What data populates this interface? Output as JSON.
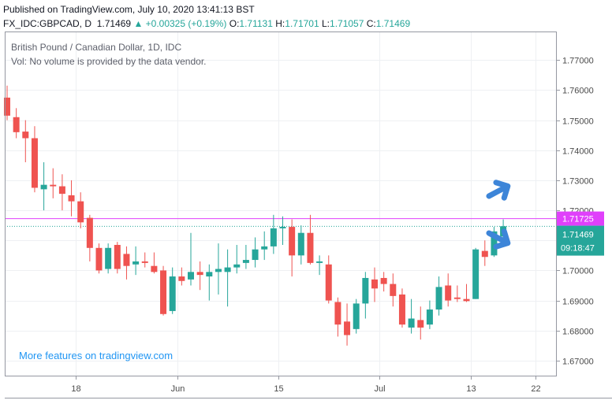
{
  "header": {
    "published": "Published on TradingView.com, July 10, 2020 13:41:13 BST",
    "symbol": "FX_IDC:GBPCAD, D",
    "last": "1.71469",
    "change": "▲ +0.00325 (+0.19%)",
    "open_label": "O:",
    "open": "1.71131",
    "high_label": "H:",
    "high": "1.71701",
    "low_label": "L:",
    "low": "1.71057",
    "close_label": "C:",
    "close": "1.71469"
  },
  "legend": {
    "title": "British Pound / Canadian Dollar, 1D, IDC",
    "volume_note": "Vol: No volume is provided by the data vendor."
  },
  "promo": "More features on tradingview.com",
  "colors": {
    "up": "#26a69a",
    "down": "#ef5350",
    "level_line": "#e040fb",
    "price_line": "#26a69a",
    "arrow": "#3d85d8",
    "grid": "#eef0f3"
  },
  "chart_data": {
    "type": "candlestick",
    "symbol": "GBPCAD",
    "ylim": [
      1.665,
      1.7795
    ],
    "y_ticks": [
      "1.67000",
      "1.68000",
      "1.69000",
      "1.70000",
      "1.71000",
      "1.72000",
      "1.73000",
      "1.74000",
      "1.75000",
      "1.76000",
      "1.77000"
    ],
    "x_ticks": [
      {
        "label": "18",
        "index": 7.5
      },
      {
        "label": "Jun",
        "index": 18.5
      },
      {
        "label": "15",
        "index": 29.5
      },
      {
        "label": "Jul",
        "index": 40.5
      },
      {
        "label": "13",
        "index": 50.5
      },
      {
        "label": "22",
        "index": 57.5
      }
    ],
    "horizontal_level": {
      "value": 1.71725,
      "label": "1.71725"
    },
    "price_line": {
      "value": 1.71469,
      "label": "1.71469",
      "countdown": "09:18:47"
    },
    "candles": [
      [
        1.7575,
        1.7615,
        1.75,
        1.7515
      ],
      [
        1.751,
        1.754,
        1.744,
        1.746
      ],
      [
        1.7462,
        1.75,
        1.736,
        1.744
      ],
      [
        1.744,
        1.748,
        1.726,
        1.7275
      ],
      [
        1.727,
        1.736,
        1.72,
        1.7285
      ],
      [
        1.7285,
        1.734,
        1.724,
        1.728
      ],
      [
        1.728,
        1.732,
        1.72,
        1.7255
      ],
      [
        1.725,
        1.73,
        1.718,
        1.723
      ],
      [
        1.723,
        1.726,
        1.714,
        1.716
      ],
      [
        1.7175,
        1.7185,
        1.703,
        1.7075
      ],
      [
        1.7075,
        1.709,
        1.699,
        1.7
      ],
      [
        1.7005,
        1.709,
        1.699,
        1.7075
      ],
      [
        1.7085,
        1.7095,
        1.699,
        1.7005
      ],
      [
        1.7055,
        1.708,
        1.697,
        1.7015
      ],
      [
        1.702,
        1.708,
        1.6985,
        1.703
      ],
      [
        1.703,
        1.706,
        1.701,
        1.7025
      ],
      [
        1.7015,
        1.706,
        1.699,
        1.6995
      ],
      [
        1.7,
        1.7015,
        1.685,
        1.6855
      ],
      [
        1.6865,
        1.701,
        1.6855,
        1.698
      ],
      [
        1.698,
        1.701,
        1.695,
        1.6965
      ],
      [
        1.697,
        1.7125,
        1.695,
        1.6995
      ],
      [
        1.6995,
        1.703,
        1.6935,
        1.6985
      ],
      [
        1.698,
        1.702,
        1.69,
        1.6995
      ],
      [
        1.6995,
        1.709,
        1.692,
        1.7005
      ],
      [
        1.6995,
        1.707,
        1.688,
        1.701
      ],
      [
        1.701,
        1.7085,
        1.699,
        1.702
      ],
      [
        1.7025,
        1.7085,
        1.7005,
        1.7035
      ],
      [
        1.7035,
        1.711,
        1.701,
        1.707
      ],
      [
        1.707,
        1.713,
        1.7035,
        1.708
      ],
      [
        1.708,
        1.7185,
        1.7055,
        1.714
      ],
      [
        1.714,
        1.718,
        1.7085,
        1.7145
      ],
      [
        1.7145,
        1.717,
        1.698,
        1.705
      ],
      [
        1.705,
        1.715,
        1.702,
        1.7125
      ],
      [
        1.7125,
        1.7185,
        1.702,
        1.7025
      ],
      [
        1.7025,
        1.705,
        1.6985,
        1.703
      ],
      [
        1.702,
        1.705,
        1.689,
        1.69
      ],
      [
        1.6895,
        1.691,
        1.678,
        1.682
      ],
      [
        1.683,
        1.689,
        1.675,
        1.6785
      ],
      [
        1.6805,
        1.6905,
        1.679,
        1.689
      ],
      [
        1.689,
        1.6995,
        1.684,
        1.6975
      ],
      [
        1.697,
        1.701,
        1.6895,
        1.694
      ],
      [
        1.6975,
        1.6995,
        1.693,
        1.6955
      ],
      [
        1.6955,
        1.699,
        1.688,
        1.6915
      ],
      [
        1.692,
        1.694,
        1.681,
        1.682
      ],
      [
        1.681,
        1.6905,
        1.679,
        1.684
      ],
      [
        1.6835,
        1.688,
        1.677,
        1.681
      ],
      [
        1.682,
        1.69,
        1.6805,
        1.687
      ],
      [
        1.687,
        1.698,
        1.685,
        1.6945
      ],
      [
        1.695,
        1.699,
        1.688,
        1.69
      ],
      [
        1.691,
        1.695,
        1.6895,
        1.6905
      ],
      [
        1.6905,
        1.6955,
        1.6895,
        1.6898
      ],
      [
        1.6905,
        1.7075,
        1.6905,
        1.707
      ],
      [
        1.7065,
        1.71,
        1.7015,
        1.7045
      ],
      [
        1.705,
        1.7145,
        1.7045,
        1.713
      ],
      [
        1.7113,
        1.717,
        1.7106,
        1.7147
      ]
    ]
  }
}
